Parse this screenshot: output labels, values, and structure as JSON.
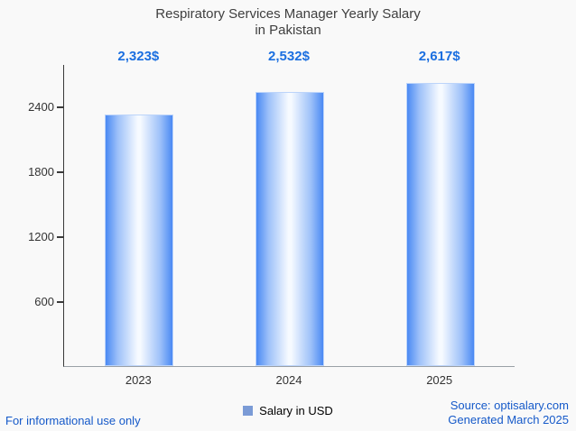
{
  "title": {
    "line1": "Respiratory Services Manager Yearly Salary",
    "line2": "in Pakistan"
  },
  "chart_data": {
    "type": "bar",
    "title": "Respiratory Services Manager Yearly Salary in Pakistan",
    "categories": [
      "2023",
      "2024",
      "2025"
    ],
    "values": [
      2323,
      2532,
      2617
    ],
    "value_labels": [
      "2,323$",
      "2,532$",
      "2,617$"
    ],
    "yticks": [
      600,
      1200,
      1800,
      2400
    ],
    "ytick_labels": [
      "600",
      "1200",
      "1800",
      "2400"
    ],
    "ylim": [
      0,
      2790
    ],
    "grid": "off",
    "legend_position": "bottom-center",
    "legend": "Salary in USD",
    "bar_edge_color": "#4a89f3",
    "bar_center_color": "#f6faff",
    "value_label_color": "#1b6fe0",
    "legend_swatch_color": "#7b9bd6"
  },
  "footer": {
    "disclaimer": "For informational use only",
    "source": "Source: optisalary.com",
    "generated": "Generated March 2025"
  }
}
